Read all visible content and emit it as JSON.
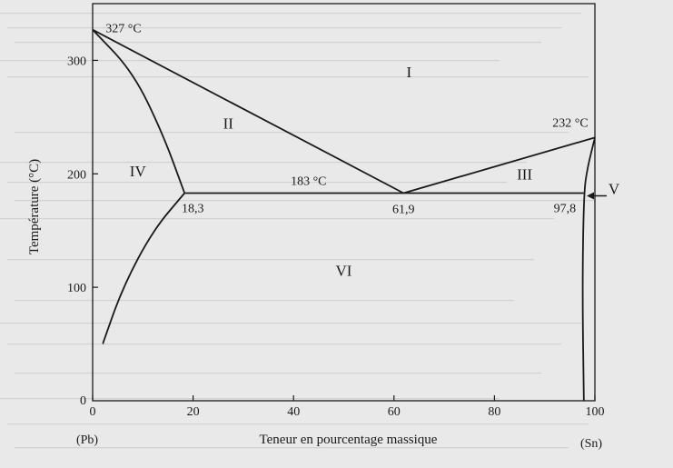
{
  "chart_data": {
    "type": "line",
    "title": "",
    "xlabel": "Teneur en pourcentage massique",
    "ylabel": "Température (°C)",
    "xlim": [
      0,
      100
    ],
    "ylim": [
      0,
      350
    ],
    "x_ticks": [
      0,
      20,
      40,
      60,
      80,
      100
    ],
    "y_ticks": [
      100,
      200,
      300
    ],
    "x_end_labels": {
      "left": "(Pb)",
      "right": "(Sn)"
    },
    "grid": false,
    "series": [
      {
        "values": [
          [
            0,
            327
          ],
          [
            61.9,
            183
          ]
        ]
      },
      {
        "values": [
          [
            61.9,
            183
          ],
          [
            100,
            232
          ]
        ]
      },
      {
        "values": [
          [
            0,
            327
          ],
          [
            8,
            290
          ],
          [
            14,
            235
          ],
          [
            18.3,
            183
          ]
        ]
      },
      {
        "values": [
          [
            18.3,
            183
          ],
          [
            97.8,
            183
          ]
        ]
      },
      {
        "values": [
          [
            18.3,
            183
          ],
          [
            12,
            150
          ],
          [
            6,
            100
          ],
          [
            2,
            50
          ]
        ]
      },
      {
        "values": [
          [
            100,
            232
          ],
          [
            98.5,
            205
          ],
          [
            97.8,
            183
          ],
          [
            97.5,
            100
          ],
          [
            97.8,
            0
          ]
        ]
      }
    ],
    "regions": [
      {
        "label": "I",
        "x": 63,
        "y": 285
      },
      {
        "label": "II",
        "x": 27,
        "y": 240
      },
      {
        "label": "III",
        "x": 86,
        "y": 195
      },
      {
        "label": "IV",
        "x": 9,
        "y": 198
      },
      {
        "label": "VI",
        "x": 50,
        "y": 110
      },
      {
        "label": "V",
        "x": 105,
        "y": 187
      }
    ],
    "annotations": [
      {
        "text": "327 °C",
        "x": 0,
        "y": 327
      },
      {
        "text": "232 °C",
        "x": 100,
        "y": 232
      },
      {
        "text": "183 °C",
        "x": 43,
        "y": 183
      },
      {
        "text": "18,3",
        "x": 18.3,
        "y": 183
      },
      {
        "text": "61,9",
        "x": 61.9,
        "y": 183
      },
      {
        "text": "97,8",
        "x": 97.8,
        "y": 183
      }
    ]
  }
}
